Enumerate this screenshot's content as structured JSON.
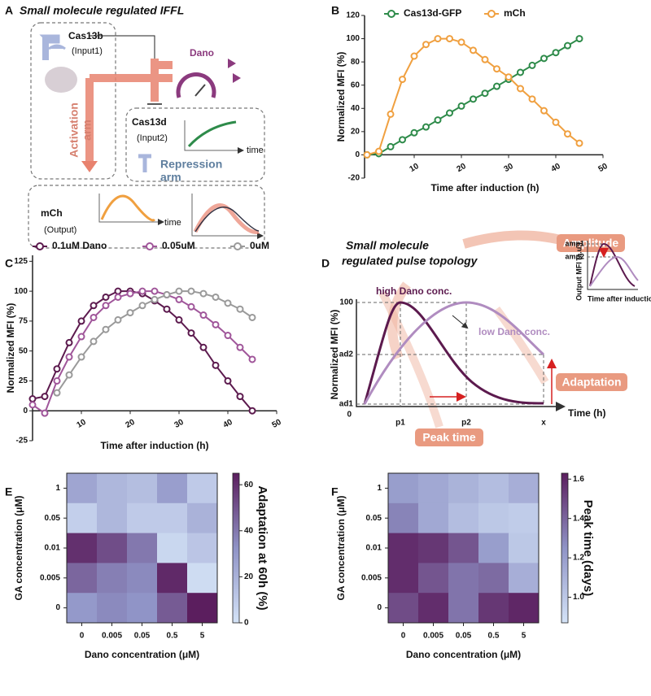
{
  "panel_a": {
    "label": "A",
    "title": "Small molecule regulated IFFL",
    "cas13b": "Cas13b",
    "input1": "(Input1)",
    "dano": "Dano",
    "cas13d": "Cas13d",
    "input2": "(Input2)",
    "time_top": "time",
    "activation_1": "Activation",
    "activation_2": "arm",
    "repression_1": "Repression",
    "repression_2": "arm",
    "mch": "mCh",
    "output": "(Output)",
    "time_bottom": "time"
  },
  "panel_d": {
    "label": "D",
    "title_1": "Small molecule",
    "title_2": "regulated pulse topology",
    "high": "high Dano conc.",
    "low": "low Dano conc.",
    "amplitude": "Amplitude",
    "adaptation": "Adaptation",
    "peak_time": "Peak time",
    "y_label": "Normalized MFI (%)",
    "y100": "100",
    "ad2": "ad2",
    "ad1": "ad1",
    "zero": "0",
    "p1": "p1",
    "p2": "p2",
    "x": "x",
    "x_label": "Time (h)",
    "inset_amp1": "amp1",
    "inset_amp2": "amp2",
    "inset_y_label": "Output MFI (a.u.)",
    "inset_x_label": "Time after induction (h)"
  },
  "chart_data": [
    {
      "type": "line",
      "panel_label": "B",
      "x_label": "Time after induction (h)",
      "y_label": "Normalized MFI (%)",
      "x": [
        0,
        2.5,
        5,
        7.5,
        10,
        12.5,
        15,
        17.5,
        20,
        22.5,
        25,
        27.5,
        30,
        32.5,
        35,
        37.5,
        40,
        42.5,
        45
      ],
      "series": [
        {
          "name": "Cas13d-GFP",
          "color": "#2e8b4a",
          "values": [
            0,
            1,
            7,
            13,
            19,
            24,
            30,
            36,
            42,
            48,
            53,
            59,
            65,
            71,
            77,
            83,
            88,
            94,
            100
          ]
        },
        {
          "name": "mCh",
          "color": "#f0a040",
          "values": [
            0,
            3,
            35,
            65,
            85,
            95,
            100,
            100,
            97,
            90,
            82,
            74,
            67,
            57,
            48,
            38,
            28,
            18,
            10
          ]
        }
      ],
      "xlim": [
        0,
        50
      ],
      "ylim": [
        -20,
        120
      ],
      "xticks": [
        10,
        20,
        30,
        40,
        50
      ],
      "yticks": [
        -20,
        0,
        20,
        40,
        60,
        80,
        100,
        120
      ]
    },
    {
      "type": "line",
      "panel_label": "C",
      "x_label": "Time after induction (h)",
      "y_label": "Normalized MFI (%)",
      "x": [
        0,
        2.5,
        5,
        7.5,
        10,
        12.5,
        15,
        17.5,
        20,
        22.5,
        25,
        27.5,
        30,
        32.5,
        35,
        37.5,
        40,
        42.5,
        45
      ],
      "series": [
        {
          "name": "0.1uM Dano",
          "color": "#5c1a4e",
          "values": [
            10,
            12,
            35,
            57,
            75,
            88,
            95,
            100,
            100,
            98,
            92,
            85,
            76,
            65,
            53,
            38,
            25,
            12,
            0
          ]
        },
        {
          "name": "0.05uM",
          "color": "#a0569a",
          "values": [
            5,
            -2,
            25,
            45,
            62,
            78,
            88,
            95,
            98,
            100,
            100,
            97,
            93,
            87,
            80,
            72,
            63,
            53,
            43
          ]
        },
        {
          "name": "0uM",
          "color": "#9a9a9a",
          "values": [
            null,
            null,
            15,
            30,
            45,
            58,
            68,
            76,
            82,
            88,
            93,
            97,
            100,
            100,
            98,
            95,
            90,
            85,
            78
          ]
        }
      ],
      "xlim": [
        0,
        50
      ],
      "ylim": [
        -25,
        130
      ],
      "xticks": [
        10,
        20,
        30,
        40,
        50
      ],
      "yticks": [
        -25,
        0,
        25,
        50,
        75,
        100,
        125
      ]
    },
    {
      "type": "heatmap",
      "panel_label": "E",
      "x_label": "Dano concentration (μM)",
      "y_label": "GA concentration (μM)",
      "colorbar_label": "Adaptation at 60h (%)",
      "x_categories": [
        "0",
        "0.005",
        "0.05",
        "0.5",
        "5"
      ],
      "y_categories": [
        "1",
        "0.05",
        "0.01",
        "0.005",
        "0"
      ],
      "values": [
        [
          25,
          18,
          15,
          28,
          10
        ],
        [
          8,
          18,
          10,
          10,
          20
        ],
        [
          60,
          52,
          40,
          5,
          12
        ],
        [
          45,
          38,
          35,
          62,
          3
        ],
        [
          30,
          35,
          32,
          48,
          65
        ]
      ],
      "zlim": [
        0,
        65
      ],
      "zticks": [
        0,
        20,
        40,
        60
      ],
      "colormap": [
        "#d4e3f7",
        "#8f93c6",
        "#5b1e5e"
      ]
    },
    {
      "type": "heatmap",
      "panel_label": "F",
      "x_label": "Dano concentration (μM)",
      "y_label": "GA concentration (μM)",
      "colorbar_label": "Peak time (days)",
      "x_categories": [
        "0",
        "0.005",
        "0.05",
        "0.5",
        "5"
      ],
      "y_categories": [
        "1",
        "0.05",
        "0.01",
        "0.005",
        "0"
      ],
      "values": [
        [
          1.2,
          1.15,
          1.1,
          1.05,
          1.12
        ],
        [
          1.3,
          1.15,
          1.05,
          1.0,
          0.98
        ],
        [
          1.58,
          1.55,
          1.45,
          1.2,
          1.0
        ],
        [
          1.58,
          1.45,
          1.35,
          1.38,
          1.12
        ],
        [
          1.48,
          1.58,
          1.35,
          1.55,
          1.6
        ]
      ],
      "zlim": [
        0.87,
        1.63
      ],
      "zticks": [
        {
          "value": 1.0,
          "label": "1.0"
        },
        1.2,
        1.4,
        1.6
      ],
      "colormap": [
        "#d4e3f7",
        "#8f93c6",
        "#5b1e5e"
      ]
    }
  ]
}
